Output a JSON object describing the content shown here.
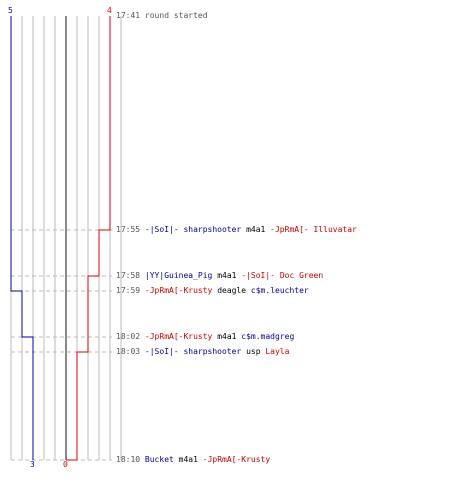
{
  "scoreboard": {
    "blue": {
      "start": 5,
      "end": 3,
      "color": "#0000aa"
    },
    "red": {
      "start": 4,
      "end": 0,
      "color": "#dd0000"
    },
    "lane_count": 10
  },
  "events": [
    {
      "time": "17:41",
      "message": "round started"
    },
    {
      "time": "17:55",
      "killer": "-|SoI|- sharpshooter",
      "killer_team": "blue",
      "weapon": "m4a1",
      "victim": "-JpRmA[- Illuvatar",
      "victim_team": "red",
      "blue_alive": 5,
      "red_alive": 3
    },
    {
      "time": "17:58",
      "killer": "|YY|Guinea_Pig",
      "killer_team": "blue",
      "weapon": "m4a1",
      "victim": "-|SoI|- Doc Green",
      "victim_team": "red",
      "blue_alive": 5,
      "red_alive": 2
    },
    {
      "time": "17:59",
      "killer": "-JpRmA[-Krusty",
      "killer_team": "red",
      "weapon": "deagle",
      "victim": "c$m.leuchter",
      "victim_team": "blue",
      "blue_alive": 4,
      "red_alive": 2
    },
    {
      "time": "18:02",
      "killer": "-JpRmA[-Krusty",
      "killer_team": "red",
      "weapon": "m4a1",
      "victim": "c$m.madgreg",
      "victim_team": "blue",
      "blue_alive": 3,
      "red_alive": 2
    },
    {
      "time": "18:03",
      "killer": "-|SoI|- sharpshooter",
      "killer_team": "blue",
      "weapon": "usp",
      "victim": "Layla",
      "victim_team": "red",
      "blue_alive": 3,
      "red_alive": 1
    },
    {
      "time": "18:10",
      "killer": "Bucket",
      "killer_team": "blue",
      "weapon": "m4a1",
      "victim": "-JpRmA[-Krusty",
      "victim_team": "red",
      "blue_alive": 3,
      "red_alive": 0
    }
  ]
}
